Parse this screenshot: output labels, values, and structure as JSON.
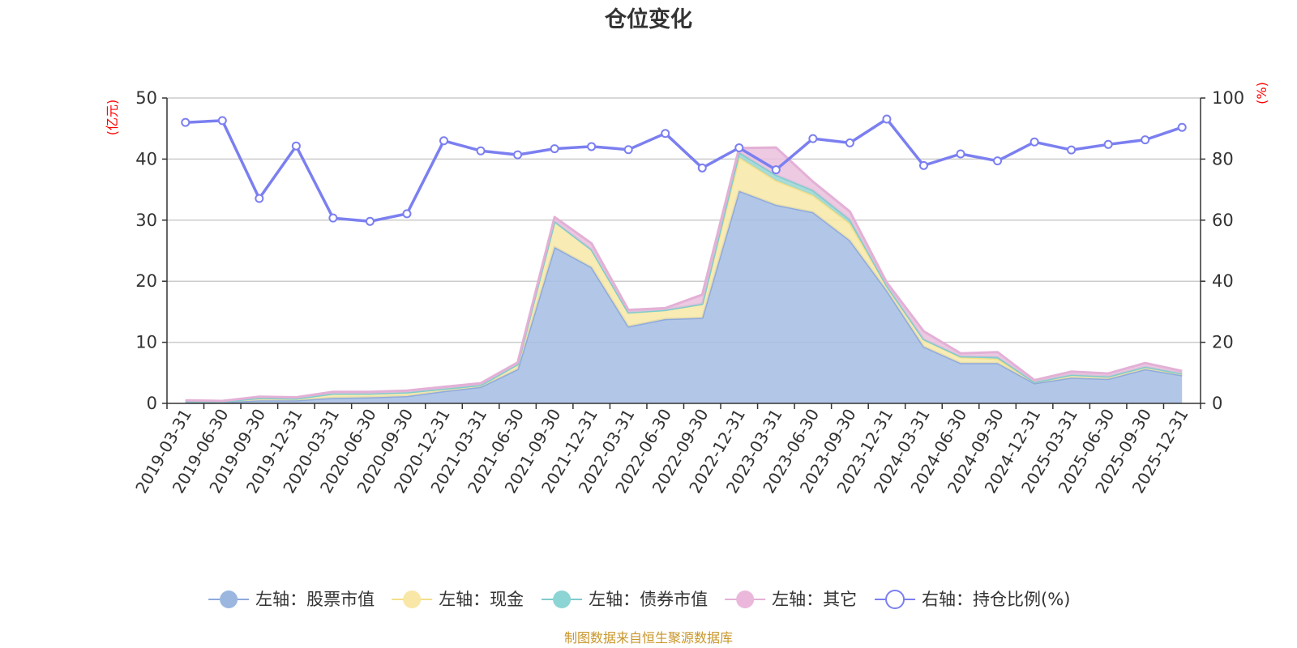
{
  "chart_data": {
    "type": "area",
    "title": "仓位变化",
    "y_left_unit": "(亿元)",
    "y_right_unit": "(%)",
    "y_left_lim": [
      0,
      50
    ],
    "y_right_lim": [
      0,
      100
    ],
    "y_left_ticks": [
      "0",
      "10",
      "20",
      "30",
      "40",
      "50"
    ],
    "y_right_ticks": [
      "0",
      "20",
      "40",
      "60",
      "80",
      "100"
    ],
    "grid": true,
    "categories": [
      "2019-03-31",
      "2019-06-30",
      "2019-09-30",
      "2019-12-31",
      "2020-03-31",
      "2020-06-30",
      "2020-09-30",
      "2020-12-31",
      "2021-03-31",
      "2021-06-30",
      "2021-09-30",
      "2021-12-31",
      "2022-03-31",
      "2022-06-30",
      "2022-09-30",
      "2022-12-31",
      "2023-03-31",
      "2023-06-30",
      "2023-09-30",
      "2023-12-31",
      "2024-03-31",
      "2024-06-30",
      "2024-09-30",
      "2024-12-31",
      "2025-03-31",
      "2025-06-30",
      "2025-09-30",
      "2025-12-31"
    ],
    "stacked_series": [
      {
        "name": "左轴：股票市值",
        "color": "#a4bde3",
        "line": "#8faadc",
        "legend_color": "#9bb7e0",
        "values": [
          0.3,
          0.2,
          0.5,
          0.5,
          0.9,
          1.0,
          1.2,
          2.0,
          2.7,
          5.6,
          25.6,
          22.3,
          12.6,
          13.8,
          14.0,
          34.8,
          32.5,
          31.3,
          26.7,
          18.5,
          9.3,
          6.6,
          6.6,
          3.3,
          4.2,
          4.0,
          5.6,
          4.6
        ]
      },
      {
        "name": "左轴：现金",
        "color": "#f7e8a6",
        "line": "#f3df8a",
        "legend_color": "#f8e7a6",
        "values": [
          0.1,
          0.1,
          0.4,
          0.3,
          0.7,
          0.6,
          0.6,
          0.4,
          0.3,
          0.8,
          4.2,
          2.9,
          2.3,
          1.5,
          2.3,
          5.5,
          4.0,
          2.8,
          2.8,
          0.8,
          1.2,
          1.0,
          0.7,
          0.2,
          0.5,
          0.4,
          0.4,
          0.3
        ]
      },
      {
        "name": "左轴：债券市值",
        "color": "#98d6d6",
        "line": "#7fcccc",
        "legend_color": "#8dd4d4",
        "values": [
          0,
          0,
          0,
          0,
          0,
          0,
          0,
          0,
          0,
          0,
          0,
          0,
          0,
          0,
          0,
          0.8,
          0.9,
          0.8,
          0.6,
          0,
          0,
          0.1,
          0.3,
          0,
          0,
          0,
          0,
          0
        ]
      },
      {
        "name": "左轴：其它",
        "color": "#eac0dd",
        "line": "#e3b0d6",
        "legend_color": "#ebb8dc",
        "values": [
          0.1,
          0.1,
          0.2,
          0.2,
          0.3,
          0.3,
          0.3,
          0.3,
          0.3,
          0.3,
          0.7,
          1.0,
          0.4,
          0.3,
          1.5,
          0.7,
          4.5,
          1.4,
          1.3,
          0.5,
          1.3,
          0.5,
          0.8,
          0.3,
          0.5,
          0.5,
          0.6,
          0.4
        ]
      }
    ],
    "line_series": {
      "name": "右轴：持仓比例(%)",
      "color": "#7b7ff0",
      "axis": "right",
      "values": [
        92.0,
        92.6,
        67.1,
        84.3,
        60.7,
        59.6,
        62.1,
        86.0,
        82.7,
        81.4,
        83.4,
        84.1,
        83.1,
        88.4,
        77.1,
        83.7,
        76.5,
        86.7,
        85.3,
        93.1,
        77.9,
        81.7,
        79.4,
        85.6,
        83.0,
        84.8,
        86.3,
        90.4
      ]
    },
    "legend_position": "bottom",
    "source_note": "制图数据来自恒生聚源数据库"
  }
}
